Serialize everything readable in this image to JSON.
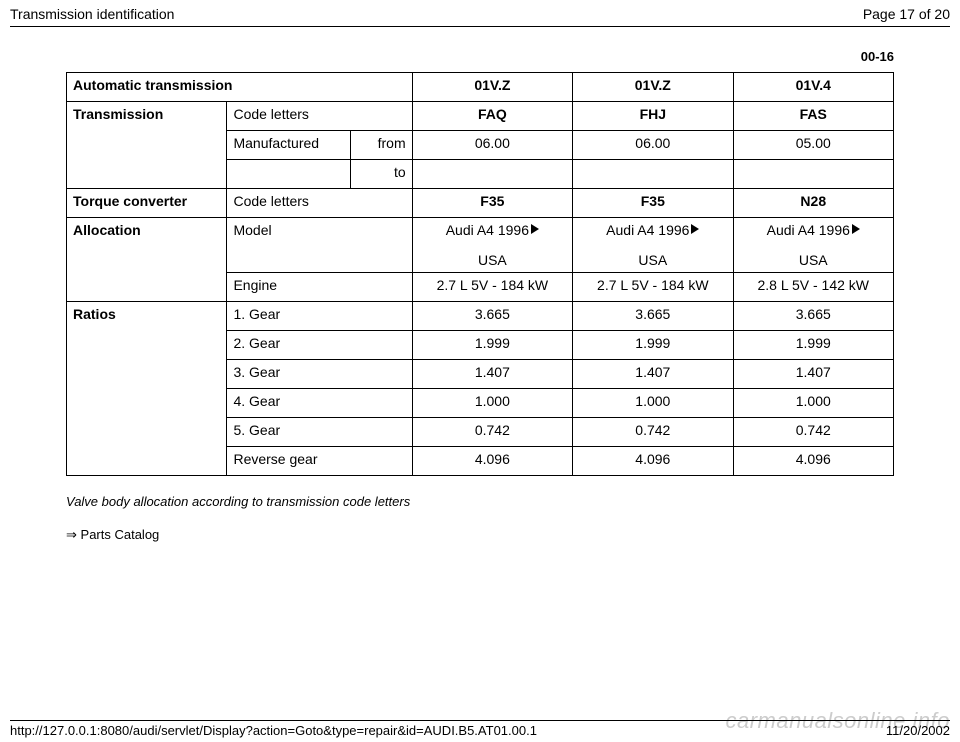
{
  "header": {
    "title": "Transmission identification",
    "page": "Page 17 of 20"
  },
  "section_number": "00-16",
  "col_headers": {
    "auto": "Automatic transmission",
    "c0": "01V.Z",
    "c1": "01V.Z",
    "c2": "01V.4"
  },
  "trans": {
    "label": "Transmission",
    "code_letters_label": "Code letters",
    "code_letters": [
      "FAQ",
      "FHJ",
      "FAS"
    ],
    "manufactured_label": "Manufactured",
    "from_label": "from",
    "to_label": "to",
    "from": [
      "06.00",
      "06.00",
      "05.00"
    ],
    "to": [
      "",
      "",
      ""
    ]
  },
  "torque": {
    "label": "Torque converter",
    "code_letters_label": "Code letters",
    "code_letters": [
      "F35",
      "F35",
      "N28"
    ]
  },
  "alloc": {
    "label": "Allocation",
    "model_label": "Model",
    "model_main": [
      "Audi A4 1996",
      "Audi A4 1996",
      "Audi A4 1996"
    ],
    "model_sub": [
      "USA",
      "USA",
      "USA"
    ],
    "engine_label": "Engine",
    "engine": [
      "2.7 L 5V - 184 kW",
      "2.7 L 5V - 184 kW",
      "2.8 L 5V - 142 kW"
    ]
  },
  "ratios": {
    "label": "Ratios",
    "rows": [
      {
        "label": "1. Gear",
        "v": [
          "3.665",
          "3.665",
          "3.665"
        ]
      },
      {
        "label": "2. Gear",
        "v": [
          "1.999",
          "1.999",
          "1.999"
        ]
      },
      {
        "label": "3. Gear",
        "v": [
          "1.407",
          "1.407",
          "1.407"
        ]
      },
      {
        "label": "4. Gear",
        "v": [
          "1.000",
          "1.000",
          "1.000"
        ]
      },
      {
        "label": "5. Gear",
        "v": [
          "0.742",
          "0.742",
          "0.742"
        ]
      },
      {
        "label": "Reverse gear",
        "v": [
          "4.096",
          "4.096",
          "4.096"
        ]
      }
    ]
  },
  "note": "Valve body allocation according to transmission code letters",
  "parts_link": " Parts Catalog",
  "arrow_glyph": "⇒",
  "footer": {
    "url": "http://127.0.0.1:8080/audi/servlet/Display?action=Goto&type=repair&id=AUDI.B5.AT01.00.1",
    "date": "11/20/2002"
  },
  "watermark": "carmanualsonline.info"
}
